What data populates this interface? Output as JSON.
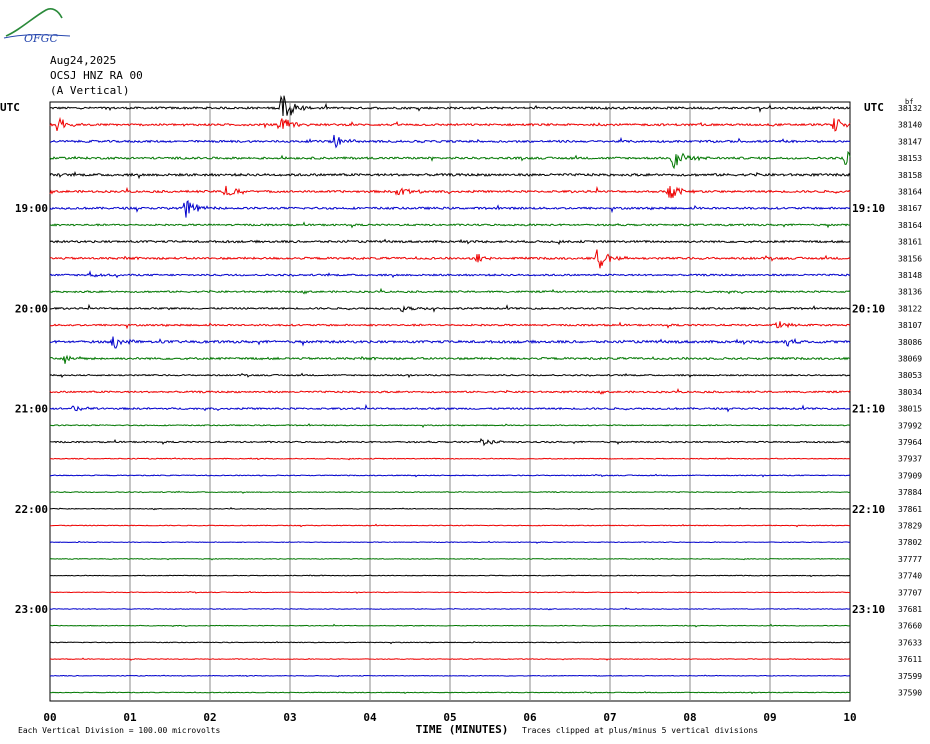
{
  "header": {
    "date": "Aug24,2025",
    "station": "OCSJ HNZ RA 00",
    "component": "(A Vertical)",
    "logo_text": "OFGC"
  },
  "chart_data": {
    "type": "seismogram",
    "left_axis_title": "UTC",
    "right_axis_title": "UTC",
    "right_column_header": "bf",
    "left_time_labels": [
      "19:00",
      "20:00",
      "21:00",
      "22:00",
      "23:00"
    ],
    "right_time_labels": [
      "19:10",
      "20:10",
      "21:10",
      "22:10",
      "23:10"
    ],
    "x_ticks": [
      "00",
      "01",
      "02",
      "03",
      "04",
      "05",
      "06",
      "07",
      "08",
      "09",
      "10"
    ],
    "xlabel": "TIME (MINUTES)",
    "xlim": [
      0,
      10
    ],
    "trace_colors": [
      "#000000",
      "#ee0000",
      "#0000cc",
      "#007700"
    ],
    "right_values": [
      "38132",
      "38140",
      "38147",
      "38153",
      "38158",
      "38164",
      "38167",
      "38164",
      "38161",
      "38156",
      "38148",
      "38136",
      "38122",
      "38107",
      "38086",
      "38069",
      "38053",
      "38034",
      "38015",
      "37992",
      "37964",
      "37937",
      "37909",
      "37884",
      "37861",
      "37829",
      "37802",
      "37777",
      "37740",
      "37707",
      "37681",
      "37660",
      "37633",
      "37611",
      "37599",
      "37590"
    ],
    "events": [
      {
        "trace": 0,
        "minute": 2.9,
        "amp": 2.0
      },
      {
        "trace": 1,
        "minute": 0.1,
        "amp": 0.9
      },
      {
        "trace": 1,
        "minute": 2.9,
        "amp": 1.0
      },
      {
        "trace": 1,
        "minute": 9.8,
        "amp": 1.0
      },
      {
        "trace": 2,
        "minute": 3.55,
        "amp": 0.8
      },
      {
        "trace": 3,
        "minute": 7.8,
        "amp": 1.6
      },
      {
        "trace": 3,
        "minute": 9.95,
        "amp": 1.2
      },
      {
        "trace": 5,
        "minute": 2.2,
        "amp": 1.0
      },
      {
        "trace": 5,
        "minute": 4.35,
        "amp": 0.9
      },
      {
        "trace": 5,
        "minute": 7.75,
        "amp": 1.2
      },
      {
        "trace": 6,
        "minute": 1.7,
        "amp": 1.2
      },
      {
        "trace": 9,
        "minute": 6.85,
        "amp": 1.5
      },
      {
        "trace": 9,
        "minute": 5.35,
        "amp": 0.5
      },
      {
        "trace": 10,
        "minute": 0.5,
        "amp": 0.3
      },
      {
        "trace": 12,
        "minute": 4.4,
        "amp": 0.5
      },
      {
        "trace": 13,
        "minute": 9.1,
        "amp": 0.5
      },
      {
        "trace": 14,
        "minute": 0.8,
        "amp": 1.0
      },
      {
        "trace": 14,
        "minute": 9.2,
        "amp": 0.6
      },
      {
        "trace": 15,
        "minute": 0.2,
        "amp": 0.8
      },
      {
        "trace": 18,
        "minute": 0.3,
        "amp": 0.4
      },
      {
        "trace": 20,
        "minute": 5.4,
        "amp": 0.5
      }
    ],
    "noise_levels": [
      0.12,
      0.12,
      0.12,
      0.12,
      0.14,
      0.12,
      0.12,
      0.1,
      0.12,
      0.12,
      0.1,
      0.1,
      0.1,
      0.1,
      0.14,
      0.12,
      0.08,
      0.1,
      0.1,
      0.06,
      0.08,
      0.05,
      0.05,
      0.05,
      0.04,
      0.04,
      0.04,
      0.04,
      0.04,
      0.04,
      0.04,
      0.04,
      0.04,
      0.04,
      0.04,
      0.04
    ],
    "footer_left": "Each Vertical Division =  100.00 microvolts",
    "footer_right": "Traces clipped at plus/minus 5 vertical divisions"
  }
}
